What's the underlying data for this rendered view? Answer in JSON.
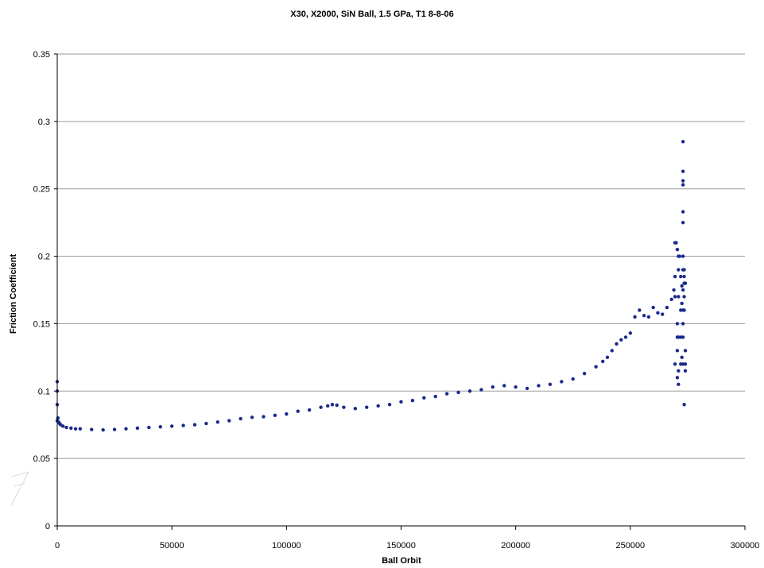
{
  "chart_data": {
    "type": "scatter",
    "title": "X30, X2000, SiN Ball, 1.5 GPa, T1 8-8-06",
    "xlabel": "Ball Orbit",
    "ylabel": "Friction Coefficient",
    "xlim": [
      0,
      300000
    ],
    "ylim": [
      0,
      0.35
    ],
    "x_ticks": [
      0,
      50000,
      100000,
      150000,
      200000,
      250000,
      300000
    ],
    "x_tick_labels": [
      "0",
      "50000",
      "100000",
      "150000",
      "200000",
      "250000",
      "300000"
    ],
    "y_ticks": [
      0,
      0.05,
      0.1,
      0.15,
      0.2,
      0.25,
      0.3,
      0.35
    ],
    "y_tick_labels": [
      "0",
      "0.05",
      "0.1",
      "0.15",
      "0.2",
      "0.25",
      "0.3",
      "0.35"
    ],
    "grid": "horizontal",
    "legend": "none",
    "marker_color": "#1a2a8c",
    "series": [
      {
        "x": [
          0,
          300,
          600,
          1000,
          1500,
          2500,
          4000,
          6000,
          8000,
          10000,
          15000,
          20000,
          25000,
          30000,
          35000,
          40000,
          45000,
          50000,
          55000,
          60000,
          65000,
          70000,
          75000,
          80000,
          85000,
          90000,
          95000,
          100000,
          105000,
          110000,
          115000,
          118000,
          120000,
          122000,
          125000,
          130000,
          135000,
          140000,
          145000,
          150000,
          155000,
          160000,
          165000,
          170000,
          175000,
          180000,
          185000,
          190000,
          195000,
          200000,
          205000,
          210000,
          215000,
          220000,
          225000,
          230000,
          235000,
          238000,
          240000,
          242000,
          244000,
          246000,
          248000,
          250000,
          252000,
          254000,
          256000,
          258000,
          260000,
          262000,
          264000,
          266000,
          268000,
          269000,
          269500,
          270000,
          270500,
          271000,
          271500,
          272000,
          272500,
          273000,
          273500,
          274000,
          0,
          0,
          0,
          273000,
          273000,
          273000,
          273000,
          273000,
          273000,
          273000,
          273000,
          273000,
          273000,
          273000,
          273000,
          273500,
          273500,
          273500,
          273500,
          273500,
          270500,
          270500,
          270500,
          270500,
          271000,
          271000,
          271000,
          271000,
          271000,
          272000,
          272000,
          272000,
          272500,
          272500,
          269500,
          269500,
          269500,
          274000,
          274000,
          274000
        ],
        "y": [
          0.078,
          0.08,
          0.077,
          0.076,
          0.075,
          0.074,
          0.073,
          0.0725,
          0.072,
          0.072,
          0.0715,
          0.0712,
          0.0715,
          0.072,
          0.0725,
          0.073,
          0.0735,
          0.074,
          0.0745,
          0.075,
          0.076,
          0.077,
          0.078,
          0.0795,
          0.0805,
          0.081,
          0.082,
          0.083,
          0.085,
          0.086,
          0.088,
          0.089,
          0.09,
          0.0895,
          0.088,
          0.087,
          0.088,
          0.089,
          0.09,
          0.092,
          0.093,
          0.095,
          0.096,
          0.098,
          0.099,
          0.1,
          0.101,
          0.103,
          0.104,
          0.103,
          0.102,
          0.104,
          0.105,
          0.107,
          0.109,
          0.113,
          0.118,
          0.122,
          0.125,
          0.13,
          0.135,
          0.138,
          0.14,
          0.143,
          0.155,
          0.16,
          0.156,
          0.155,
          0.162,
          0.158,
          0.157,
          0.162,
          0.168,
          0.175,
          0.185,
          0.21,
          0.205,
          0.19,
          0.2,
          0.185,
          0.178,
          0.19,
          0.185,
          0.18,
          0.107,
          0.1,
          0.09,
          0.285,
          0.263,
          0.256,
          0.253,
          0.233,
          0.225,
          0.2,
          0.175,
          0.16,
          0.15,
          0.14,
          0.12,
          0.19,
          0.18,
          0.17,
          0.16,
          0.09,
          0.15,
          0.14,
          0.13,
          0.11,
          0.2,
          0.17,
          0.14,
          0.115,
          0.105,
          0.16,
          0.14,
          0.12,
          0.165,
          0.125,
          0.21,
          0.17,
          0.12,
          0.13,
          0.12,
          0.115
        ]
      }
    ]
  },
  "watermark": "ft"
}
